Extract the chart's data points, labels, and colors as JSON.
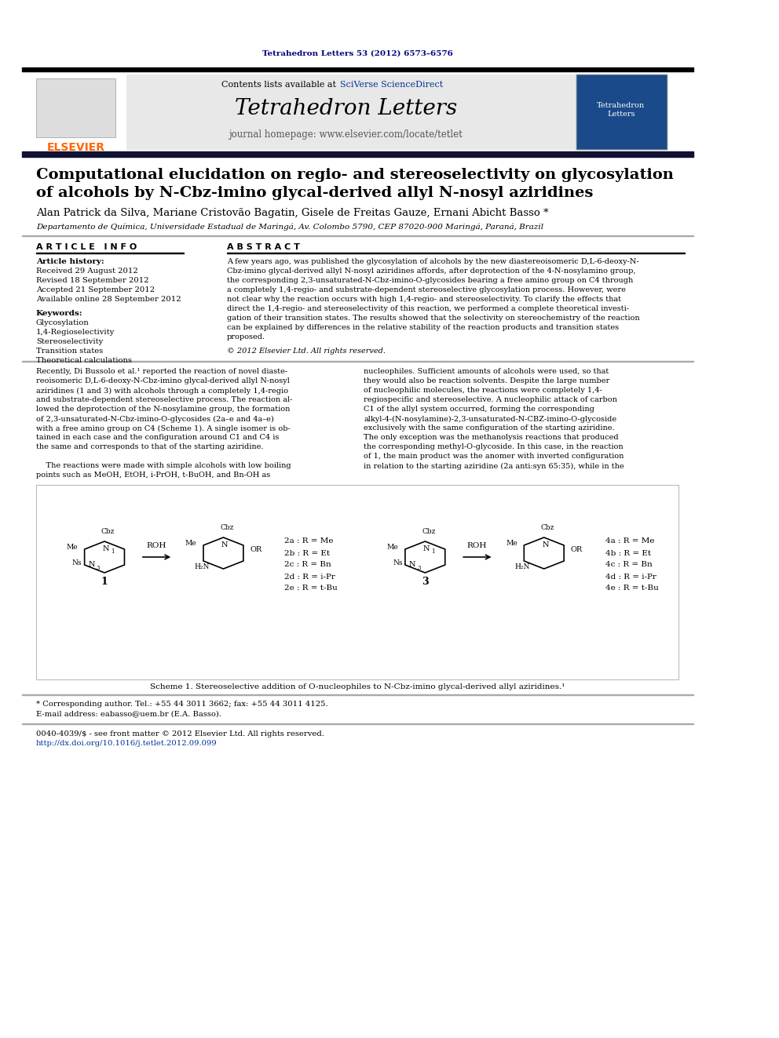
{
  "journal_citation": "Tetrahedron Letters 53 (2012) 6573–6576",
  "journal_name": "Tetrahedron Letters",
  "journal_homepage": "journal homepage: www.elsevier.com/locate/tetlet",
  "contents_line": "Contents lists available at SciVerse ScienceDirect",
  "elsevier_color": "#FF6600",
  "title_line1": "Computational elucidation on regio- and stereoselectivity on glycosylation",
  "title_line2": "of alcohols by N-Cbz-imino glycal-derived allyl N-nosyl aziridines",
  "authors": "Alan Patrick da Silva, Mariane Cristovão Bagatin, Gisele de Freitas Gauze, Ernani Abicht Basso *",
  "affiliation": "Departamento de Química, Universidade Estadual de Maringá, Av. Colombo 5790, CEP 87020-900 Maringá, Paraná, Brazil",
  "article_info_header": "A R T I C L E   I N F O",
  "abstract_header": "A B S T R A C T",
  "article_history_label": "Article history:",
  "received": "Received 29 August 2012",
  "revised": "Revised 18 September 2012",
  "accepted": "Accepted 21 September 2012",
  "available": "Available online 28 September 2012",
  "keywords_label": "Keywords:",
  "keywords": [
    "Glycosylation",
    "1,4-Regioselectivity",
    "Stereoselectivity",
    "Transition states",
    "Theoretical calculations"
  ],
  "abstract_lines": [
    "A few years ago, was published the glycosylation of alcohols by the new diastereoisomeric D,L-6-deoxy-N-",
    "Cbz-imino glycal-derived allyl N-nosyl aziridines affords, after deprotection of the 4-N-nosylamino group,",
    "the corresponding 2,3-unsaturated-N-Cbz-imino-O-glycosides bearing a free amino group on C4 through",
    "a completely 1,4-regio- and substrate-dependent stereoselective glycosylation process. However, were",
    "not clear why the reaction occurs with high 1,4-regio- and stereoselectivity. To clarify the effects that",
    "direct the 1,4-regio- and stereoselectivity of this reaction, we performed a complete theoretical investi-",
    "gation of their transition states. The results showed that the selectivity on stereochemistry of the reaction",
    "can be explained by differences in the relative stability of the reaction products and transition states",
    "proposed."
  ],
  "copyright": "© 2012 Elsevier Ltd. All rights reserved.",
  "left_body": [
    "Recently, Di Bussolo et al.¹ reported the reaction of novel diaste-",
    "reoisomeric D,L-6-deoxy-N-Cbz-imino glycal-derived allyl N-nosyl",
    "aziridines (1 and 3) with alcohols through a completely 1,4-regio",
    "and substrate-dependent stereoselective process. The reaction al-",
    "lowed the deprotection of the N-nosylamine group, the formation",
    "of 2,3-unsaturated-N-Cbz-imino-O-glycosides (2a–e and 4a–e)",
    "with a free amino group on C4 (Scheme 1). A single isomer is ob-",
    "tained in each case and the configuration around C1 and C4 is",
    "the same and corresponds to that of the starting aziridine.",
    "",
    "    The reactions were made with simple alcohols with low boiling",
    "points such as MeOH, EtOH, i-PrOH, t-BuOH, and Bn-OH as"
  ],
  "right_body": [
    "nucleophiles. Sufficient amounts of alcohols were used, so that",
    "they would also be reaction solvents. Despite the large number",
    "of nucleophilic molecules, the reactions were completely 1,4-",
    "regiospecific and stereoselective. A nucleophilic attack of carbon",
    "C1 of the allyl system occurred, forming the corresponding",
    "alkyl-4-(N-nosylamine)-2,3-unsaturated-N-CBZ-imino-O-glycoside",
    "exclusively with the same configuration of the starting aziridine.",
    "The only exception was the methanolysis reactions that produced",
    "the corresponding methyl-O-glycoside. In this case, in the reaction",
    "of 1, the main product was the anomer with inverted configuration",
    "in relation to the starting aziridine (2a anti:syn 65:35), while in the"
  ],
  "scheme_caption": "Scheme 1. Stereoselective addition of O-nucleophiles to N-Cbz-imino glycal-derived allyl aziridines.¹",
  "products_2": [
    "2a : R = Me",
    "2b : R = Et",
    "2c : R = Bn",
    "2d : R = i-Pr",
    "2e : R = t-Bu"
  ],
  "products_4": [
    "4a : R = Me",
    "4b : R = Et",
    "4c : R = Bn",
    "4d : R = i-Pr",
    "4e : R = t-Bu"
  ],
  "footnote_star": "* Corresponding author. Tel.: +55 44 3011 3662; fax: +55 44 3011 4125.",
  "footnote_email": "E-mail address: eabasso@uem.br (E.A. Basso).",
  "footnote_issn": "0040-4039/$ - see front matter © 2012 Elsevier Ltd. All rights reserved.",
  "footnote_doi": "http://dx.doi.org/10.1016/j.tetlet.2012.09.099",
  "bg_color": "#ffffff",
  "header_bg": "#e8e8e8",
  "sciverse_color": "#003399",
  "citation_color": "#000080",
  "elsevier_orange": "#FF6600"
}
